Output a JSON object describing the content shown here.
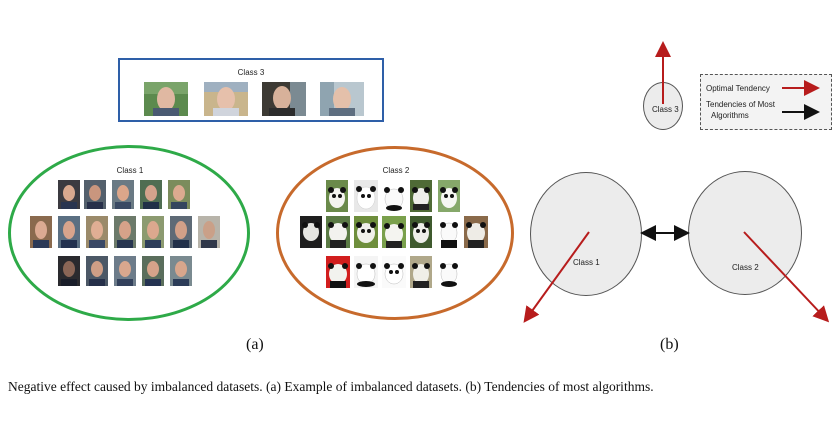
{
  "panel_a": {
    "class3_title": "Class 3",
    "class1_title": "Class 1",
    "class2_title": "Class 2",
    "label": "(a)"
  },
  "panel_b": {
    "class3_label": "Class 3",
    "class1_label": "Class 1",
    "class2_label": "Class 2",
    "label": "(b)",
    "legend": {
      "optimal": "Optimal Tendency",
      "most_line1": "Tendencies of Most",
      "most_line2": "Algorithms",
      "optimal_color": "#b71c1c",
      "most_color": "#111111"
    }
  },
  "caption": "Negative effect caused by imbalanced datasets. (a) Example of imbalanced datasets. (b) Tendencies of most algorithms."
}
